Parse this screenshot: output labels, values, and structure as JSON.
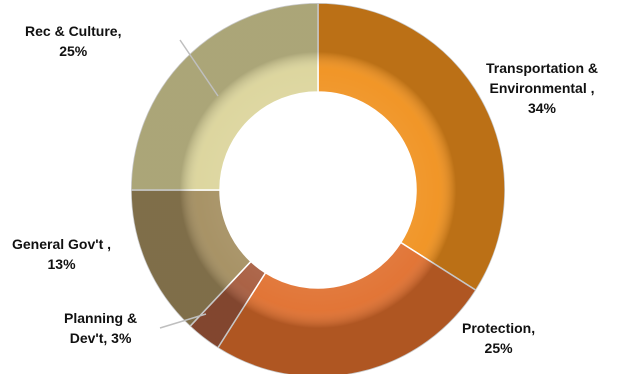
{
  "chart_data": {
    "type": "pie",
    "style": "doughnut",
    "slices": [
      {
        "label_lines": [
          "Transportation &",
          "Environmental  ,",
          "34%"
        ],
        "category": "Transportation & Environmental",
        "value": 34,
        "color": "#f0901c"
      },
      {
        "label_lines": [
          "Protection,",
          "25%"
        ],
        "category": "Protection",
        "value": 25,
        "color": "#e06e2c"
      },
      {
        "label_lines": [
          "Planning &",
          "Dev't, 3%"
        ],
        "category": "Planning & Dev't",
        "value": 3,
        "color": "#a65a3c"
      },
      {
        "label_lines": [
          "General Gov't ,",
          "13%"
        ],
        "category": "General Gov't",
        "value": 13,
        "color": "#a38d5e"
      },
      {
        "label_lines": [
          "Rec & Culture,",
          "25%"
        ],
        "category": "Rec & Culture",
        "value": 25,
        "color": "#dbd49a"
      }
    ]
  }
}
